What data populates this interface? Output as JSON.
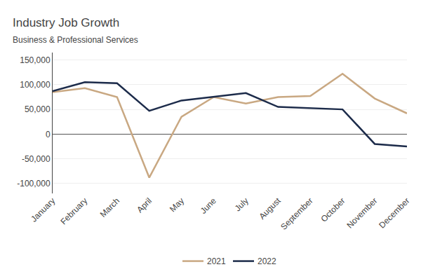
{
  "chart_data": {
    "type": "line",
    "title": "Industry Job Growth",
    "subtitle": "Business & Professional Services",
    "categories": [
      "January",
      "February",
      "March",
      "April",
      "May",
      "June",
      "July",
      "August",
      "September",
      "October",
      "November",
      "December"
    ],
    "series": [
      {
        "name": "2021",
        "color": "#c9a882",
        "values": [
          85000,
          93000,
          75000,
          -88000,
          35000,
          75000,
          62000,
          75000,
          77000,
          122000,
          72000,
          42000
        ]
      },
      {
        "name": "2022",
        "color": "#1c2b4a",
        "values": [
          87000,
          105000,
          103000,
          47000,
          68000,
          75000,
          83000,
          55000,
          52000,
          50000,
          -20000,
          -25000
        ]
      }
    ],
    "ylim": [
      -120000,
      165000
    ],
    "yticks": [
      {
        "value": -100000,
        "label": "-100,000"
      },
      {
        "value": -50000,
        "label": "-50,000"
      },
      0,
      {
        "value": 50000,
        "label": "50,000"
      },
      {
        "value": 100000,
        "label": "100,000"
      },
      {
        "value": 150000,
        "label": "150,000"
      }
    ],
    "grid": true,
    "legend": "bottom"
  }
}
